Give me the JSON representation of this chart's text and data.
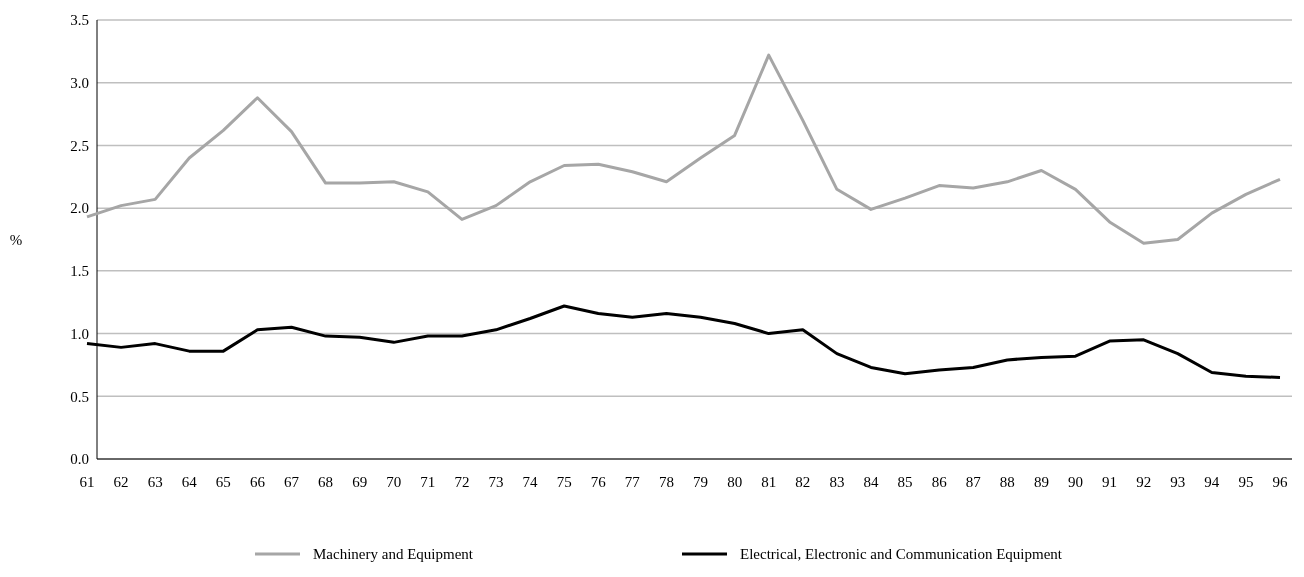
{
  "chart_data": {
    "type": "line",
    "ylabel": "%",
    "categories": [
      "61",
      "62",
      "63",
      "64",
      "65",
      "66",
      "67",
      "68",
      "69",
      "70",
      "71",
      "72",
      "73",
      "74",
      "75",
      "76",
      "77",
      "78",
      "79",
      "80",
      "81",
      "82",
      "83",
      "84",
      "85",
      "86",
      "87",
      "88",
      "89",
      "90",
      "91",
      "92",
      "93",
      "94",
      "95",
      "96"
    ],
    "series": [
      {
        "name": "Machinery and Equipment",
        "color": "#a6a6a6",
        "values": [
          1.93,
          2.02,
          2.07,
          2.4,
          2.62,
          2.88,
          2.61,
          2.2,
          2.2,
          2.21,
          2.13,
          1.91,
          2.02,
          2.21,
          2.34,
          2.35,
          2.29,
          2.21,
          2.4,
          2.58,
          3.22,
          2.7,
          2.15,
          1.99,
          2.08,
          2.18,
          2.16,
          2.21,
          2.3,
          2.15,
          1.89,
          1.72,
          1.75,
          1.96,
          2.11,
          2.23
        ]
      },
      {
        "name": "Electrical, Electronic and Communication Equipment",
        "color": "#000000",
        "values": [
          0.92,
          0.89,
          0.92,
          0.86,
          0.86,
          1.03,
          1.05,
          0.98,
          0.97,
          0.93,
          0.98,
          0.98,
          1.03,
          1.12,
          1.22,
          1.16,
          1.13,
          1.16,
          1.13,
          1.08,
          1.0,
          1.03,
          0.84,
          0.73,
          0.68,
          0.71,
          0.73,
          0.79,
          0.81,
          0.82,
          0.94,
          0.95,
          0.84,
          0.69,
          0.66,
          0.65
        ]
      }
    ],
    "ylim": [
      0,
      3.5
    ],
    "yticks": [
      {
        "value": 0,
        "label": "0.0"
      },
      {
        "value": 0.5,
        "label": "0.5"
      },
      {
        "value": 1,
        "label": "1.0"
      },
      {
        "value": 1.5,
        "label": "1.5"
      },
      {
        "value": 2,
        "label": "2.0"
      },
      {
        "value": 2.5,
        "label": "2.5"
      },
      {
        "value": 3,
        "label": "3.0"
      },
      {
        "value": 3.5,
        "label": "3.5"
      }
    ],
    "grid": "y",
    "legend": "bottom",
    "marker": "none",
    "line_style": "solid"
  }
}
